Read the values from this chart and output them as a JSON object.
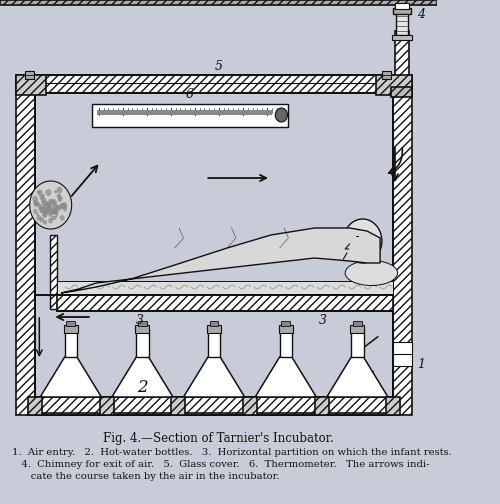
{
  "bg_color": "#c8ccd8",
  "line_color": "#111111",
  "title": "Fig. 4.—Section of Tarnier's Incubator.",
  "caption_line1": "1.  Air entry.   2.  Hot-water bottles.   3.  Horizontal partition on which the infant rests.",
  "caption_line2": "   4.  Chimney for exit of air.   5.  Glass cover.   6.  Thermometer.   The arrows indi-",
  "caption_line3": "      cate the course taken by the air in the incubator.",
  "fig_width": 5.0,
  "fig_height": 5.04,
  "caption_fontsize": 7.2,
  "title_fontsize": 8.5
}
